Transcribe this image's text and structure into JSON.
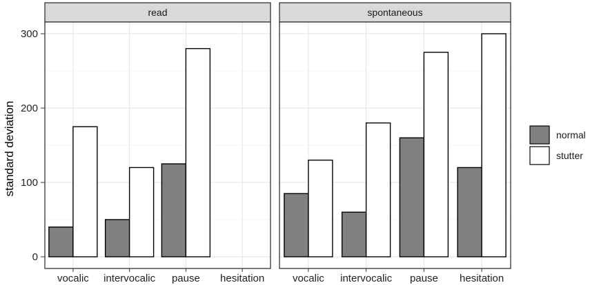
{
  "chart_data": {
    "type": "bar",
    "ylabel": "standard deviation",
    "xlabel": "",
    "ylim": [
      0,
      320
    ],
    "yticks": [
      0,
      100,
      200,
      300
    ],
    "categories": [
      "vocalic",
      "intervocalic",
      "pause",
      "hesitation"
    ],
    "legend": {
      "position": "right",
      "entries": [
        {
          "name": "normal",
          "color": "#808080"
        },
        {
          "name": "stutter",
          "color": "#ffffff"
        }
      ]
    },
    "grid": true,
    "panels": [
      {
        "strip": "read",
        "series": [
          {
            "name": "normal",
            "values": [
              40,
              50,
              125,
              0
            ]
          },
          {
            "name": "stutter",
            "values": [
              175,
              120,
              280,
              0
            ]
          }
        ]
      },
      {
        "strip": "spontaneous",
        "series": [
          {
            "name": "normal",
            "values": [
              85,
              60,
              160,
              120
            ]
          },
          {
            "name": "stutter",
            "values": [
              130,
              180,
              275,
              300
            ]
          }
        ]
      }
    ]
  }
}
